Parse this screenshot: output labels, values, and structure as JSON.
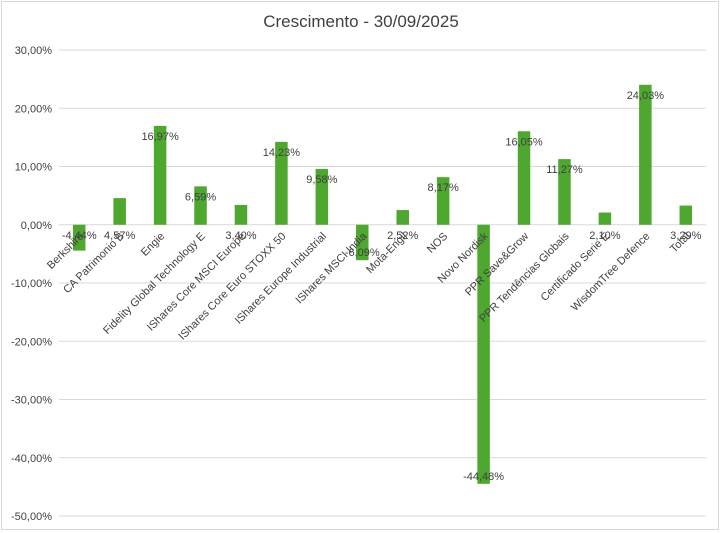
{
  "chart_data": {
    "type": "bar",
    "title": "Crescimento - 30/09/2025",
    "xlabel": "",
    "ylabel": "",
    "ylim": [
      -50,
      30
    ],
    "ytick_labels": [
      "30,00%",
      "20,00%",
      "10,00%",
      "0,00%",
      "-10,00%",
      "-20,00%",
      "-30,00%",
      "-40,00%",
      "-50,00%"
    ],
    "ytick_values": [
      30,
      20,
      10,
      0,
      -10,
      -20,
      -30,
      -40,
      -50
    ],
    "grid": true,
    "legend": "none",
    "bar_color": "#4ea72e",
    "categories": [
      "Berkshire",
      "CA Patrimonio B",
      "Engie",
      "Fidelity Global Technology E",
      "IShares Core MSCI Europe",
      "IShares Core Euro STOXX 50",
      "IShares Europe Industrial",
      "IShares MSCI India",
      "Mota-Engil",
      "NOS",
      "Novo Nordisk",
      "PPR Save&Grow",
      "PPR Tendências Globais",
      "Certificado Serie E",
      "WisdomTree Defence",
      "Total"
    ],
    "values": [
      -4.44,
      4.57,
      16.97,
      6.59,
      3.4,
      14.23,
      9.58,
      -6.09,
      2.52,
      8.17,
      -44.48,
      16.05,
      11.27,
      2.1,
      24.03,
      3.29
    ],
    "data_labels": [
      "-4,44%",
      "4,57%",
      "16,97%",
      "6,59%",
      "3,40%",
      "14,23%",
      "9,58%",
      "-6,09%",
      "2,52%",
      "8,17%",
      "-44,48%",
      "16,05%",
      "11,27%",
      "2,10%",
      "24,03%",
      "3,29%"
    ]
  }
}
